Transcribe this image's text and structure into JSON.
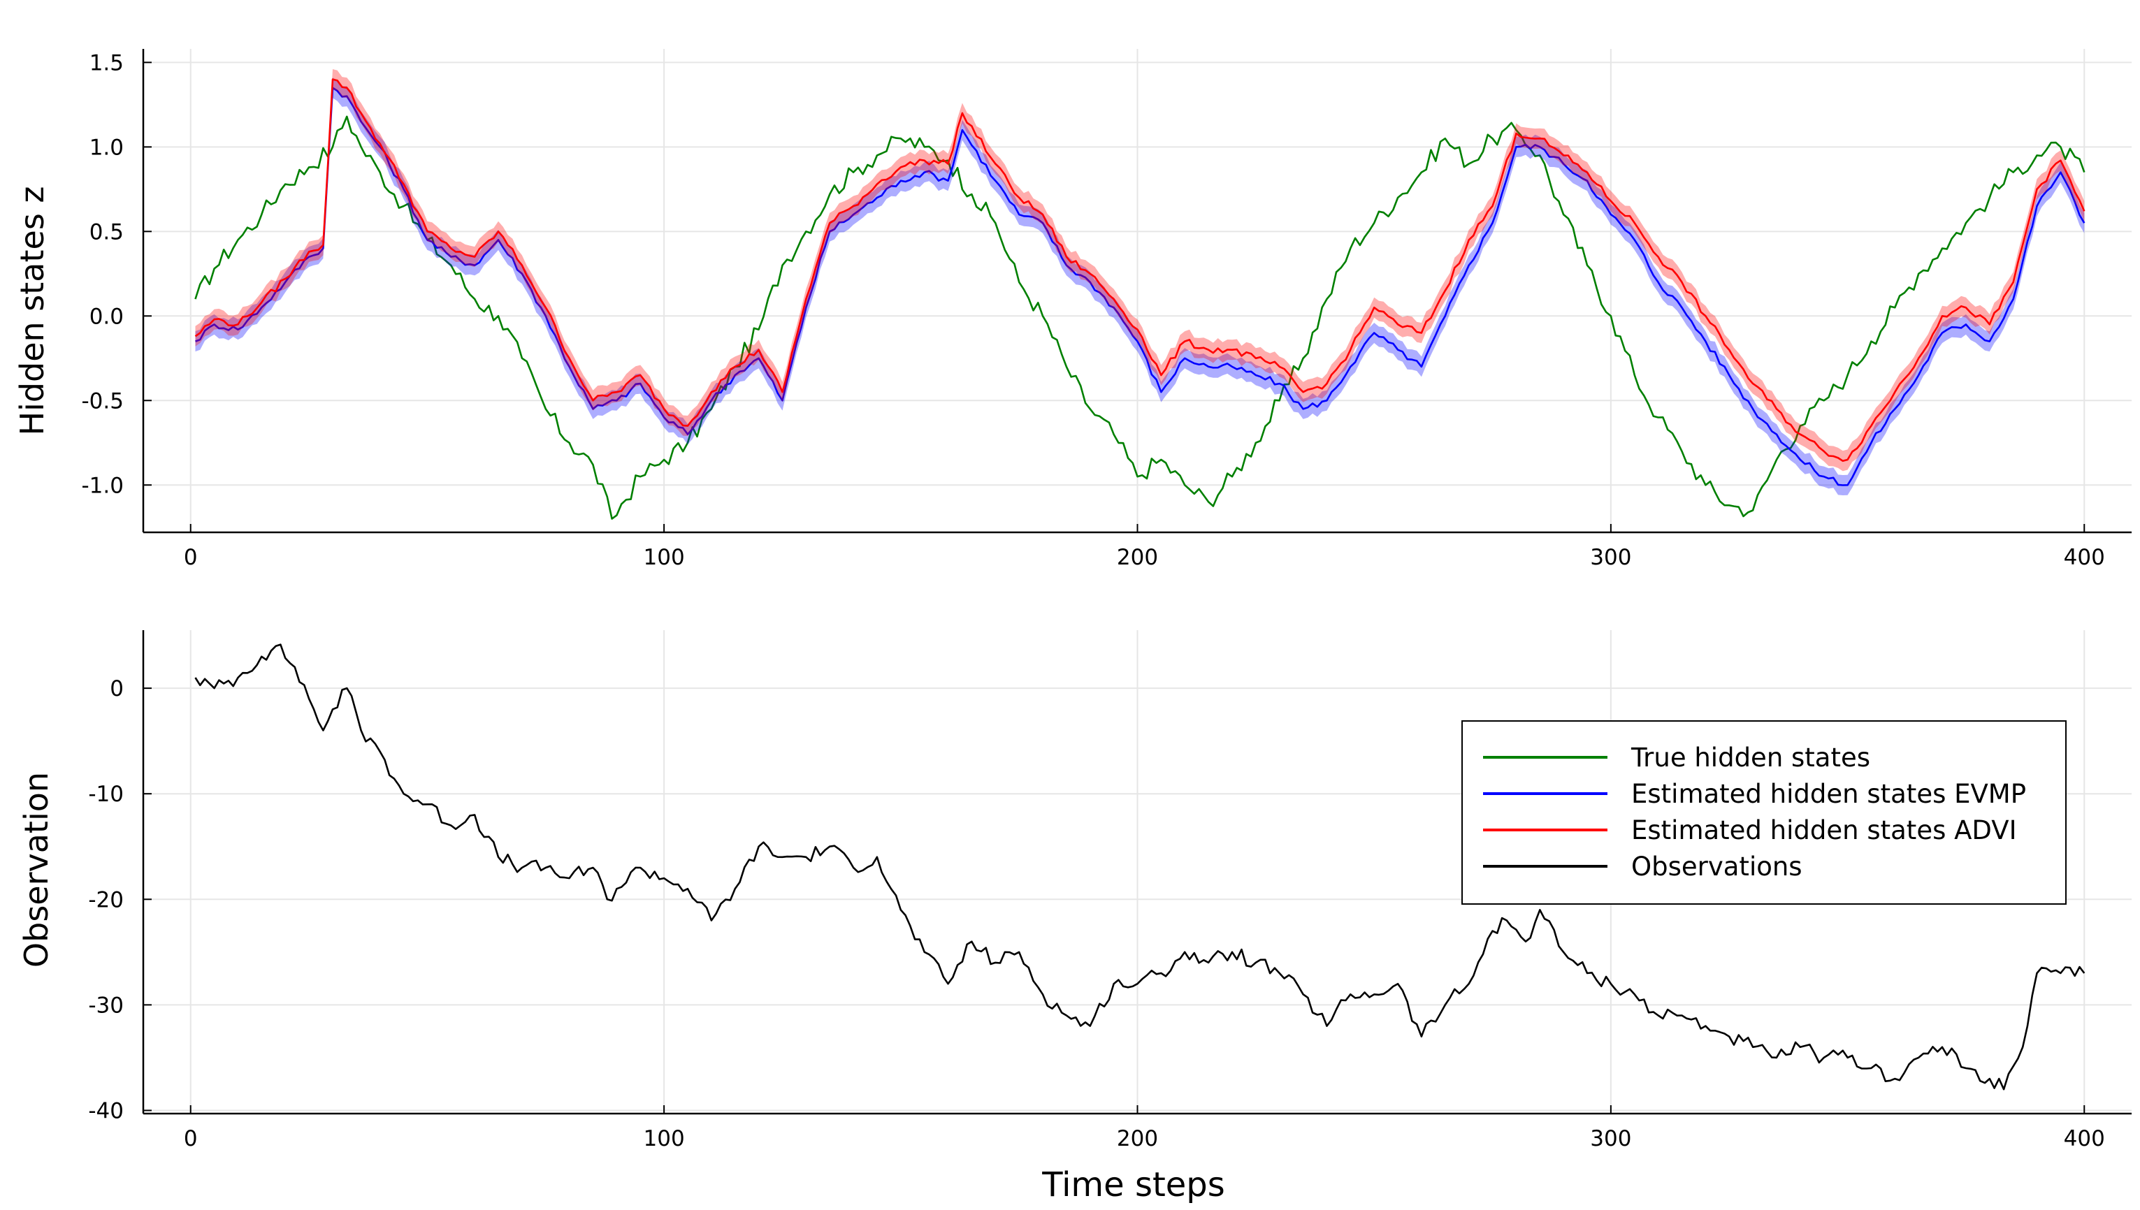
{
  "chart_data": [
    {
      "type": "line",
      "ylabel": "Hidden states z",
      "xlabel": "",
      "xlim": [
        -10,
        410
      ],
      "ylim": [
        -1.28,
        1.58
      ],
      "xticks": [
        0,
        100,
        200,
        300,
        400
      ],
      "xtick_labels": [
        "0",
        "100",
        "200",
        "300",
        "400"
      ],
      "yticks": [
        -1.0,
        -0.5,
        0.0,
        0.5,
        1.0,
        1.5
      ],
      "ytick_labels": [
        "-1.0",
        "-0.5",
        "0.0",
        "0.5",
        "1.0",
        "1.5"
      ],
      "grid": true,
      "series": [
        {
          "name": "True hidden states",
          "color": "#008000",
          "x": [
            1,
            5,
            10,
            15,
            20,
            25,
            30,
            33,
            36,
            40,
            45,
            50,
            55,
            60,
            65,
            70,
            75,
            80,
            85,
            89,
            95,
            100,
            105,
            110,
            115,
            120,
            125,
            130,
            135,
            140,
            145,
            150,
            155,
            160,
            165,
            170,
            175,
            180,
            185,
            190,
            195,
            200,
            205,
            210,
            215,
            220,
            225,
            230,
            235,
            240,
            245,
            250,
            255,
            260,
            265,
            270,
            275,
            280,
            285,
            290,
            295,
            300,
            305,
            310,
            315,
            320,
            325,
            330,
            335,
            340,
            345,
            350,
            355,
            360,
            365,
            370,
            375,
            380,
            385,
            390,
            395,
            400
          ],
          "values": [
            0.1,
            0.28,
            0.45,
            0.6,
            0.78,
            0.88,
            1.0,
            1.18,
            1.0,
            0.85,
            0.65,
            0.45,
            0.3,
            0.1,
            0.0,
            -0.25,
            -0.55,
            -0.75,
            -0.88,
            -1.2,
            -0.95,
            -0.85,
            -0.75,
            -0.55,
            -0.3,
            -0.08,
            0.3,
            0.5,
            0.72,
            0.85,
            0.95,
            1.05,
            1.0,
            0.92,
            0.72,
            0.55,
            0.2,
            0.0,
            -0.3,
            -0.55,
            -0.7,
            -0.95,
            -0.85,
            -1.0,
            -1.1,
            -0.95,
            -0.75,
            -0.5,
            -0.25,
            0.1,
            0.4,
            0.55,
            0.7,
            0.85,
            1.05,
            0.9,
            1.05,
            1.1,
            0.95,
            0.6,
            0.3,
            0.0,
            -0.35,
            -0.6,
            -0.8,
            -1.0,
            -1.12,
            -1.15,
            -0.85,
            -0.65,
            -0.5,
            -0.35,
            -0.15,
            0.05,
            0.25,
            0.4,
            0.55,
            0.7,
            0.85,
            0.95,
            1.0,
            0.85
          ]
        },
        {
          "name": "Estimated hidden states EVMP",
          "color": "#0000ff",
          "x": [
            1,
            5,
            10,
            15,
            20,
            25,
            28,
            30,
            33,
            36,
            40,
            45,
            50,
            55,
            60,
            65,
            70,
            75,
            80,
            85,
            90,
            95,
            100,
            105,
            110,
            115,
            120,
            125,
            130,
            135,
            140,
            145,
            150,
            155,
            160,
            163,
            170,
            175,
            180,
            185,
            190,
            195,
            200,
            205,
            210,
            215,
            220,
            225,
            230,
            235,
            240,
            245,
            250,
            255,
            260,
            265,
            270,
            275,
            280,
            285,
            290,
            295,
            300,
            305,
            310,
            315,
            320,
            325,
            330,
            335,
            340,
            345,
            350,
            355,
            360,
            365,
            370,
            375,
            380,
            385,
            390,
            395,
            400
          ],
          "values": [
            -0.15,
            -0.05,
            -0.08,
            0.05,
            0.2,
            0.35,
            0.4,
            1.35,
            1.3,
            1.15,
            1.0,
            0.75,
            0.45,
            0.35,
            0.3,
            0.45,
            0.25,
            0.0,
            -0.3,
            -0.55,
            -0.5,
            -0.4,
            -0.6,
            -0.7,
            -0.5,
            -0.35,
            -0.25,
            -0.5,
            0.05,
            0.5,
            0.6,
            0.7,
            0.8,
            0.85,
            0.8,
            1.1,
            0.8,
            0.6,
            0.55,
            0.3,
            0.2,
            0.05,
            -0.15,
            -0.45,
            -0.25,
            -0.3,
            -0.3,
            -0.35,
            -0.4,
            -0.55,
            -0.5,
            -0.3,
            -0.1,
            -0.2,
            -0.3,
            0.0,
            0.3,
            0.55,
            1.0,
            1.0,
            0.9,
            0.8,
            0.6,
            0.45,
            0.2,
            0.05,
            -0.15,
            -0.35,
            -0.55,
            -0.7,
            -0.85,
            -0.95,
            -1.0,
            -0.75,
            -0.55,
            -0.35,
            -0.1,
            -0.05,
            -0.15,
            0.1,
            0.65,
            0.85,
            0.55
          ]
        },
        {
          "name": "Estimated hidden states ADVI",
          "color": "#ff0000",
          "x": [
            1,
            5,
            10,
            15,
            20,
            25,
            28,
            30,
            33,
            36,
            40,
            45,
            50,
            55,
            60,
            65,
            70,
            75,
            80,
            85,
            90,
            95,
            100,
            105,
            110,
            115,
            120,
            125,
            130,
            135,
            140,
            145,
            150,
            155,
            160,
            163,
            170,
            175,
            180,
            185,
            190,
            195,
            200,
            205,
            210,
            215,
            220,
            225,
            230,
            235,
            240,
            245,
            250,
            255,
            260,
            265,
            270,
            275,
            280,
            285,
            290,
            295,
            300,
            305,
            310,
            315,
            320,
            325,
            330,
            335,
            340,
            345,
            350,
            355,
            360,
            365,
            370,
            375,
            380,
            385,
            390,
            395,
            400
          ],
          "values": [
            -0.12,
            -0.02,
            -0.05,
            0.08,
            0.22,
            0.38,
            0.42,
            1.4,
            1.35,
            1.2,
            1.02,
            0.78,
            0.5,
            0.4,
            0.35,
            0.5,
            0.3,
            0.05,
            -0.25,
            -0.5,
            -0.45,
            -0.35,
            -0.55,
            -0.65,
            -0.45,
            -0.3,
            -0.2,
            -0.45,
            0.1,
            0.55,
            0.65,
            0.78,
            0.88,
            0.92,
            0.9,
            1.2,
            0.9,
            0.7,
            0.6,
            0.35,
            0.25,
            0.1,
            -0.08,
            -0.35,
            -0.15,
            -0.2,
            -0.2,
            -0.25,
            -0.3,
            -0.45,
            -0.4,
            -0.2,
            0.05,
            -0.05,
            -0.1,
            0.15,
            0.45,
            0.65,
            1.08,
            1.05,
            0.95,
            0.85,
            0.68,
            0.55,
            0.35,
            0.2,
            0.0,
            -0.2,
            -0.4,
            -0.55,
            -0.7,
            -0.8,
            -0.85,
            -0.65,
            -0.45,
            -0.25,
            0.0,
            0.05,
            -0.05,
            0.2,
            0.75,
            0.92,
            0.62
          ]
        }
      ]
    },
    {
      "type": "line",
      "ylabel": "Observation",
      "xlabel": "Time steps",
      "xlim": [
        -10,
        410
      ],
      "ylim": [
        -40.3,
        5.5
      ],
      "xticks": [
        0,
        100,
        200,
        300,
        400
      ],
      "xtick_labels": [
        "0",
        "100",
        "200",
        "300",
        "400"
      ],
      "yticks": [
        0,
        -10,
        -20,
        -30,
        -40
      ],
      "ytick_labels": [
        "0",
        "-10",
        "-20",
        "-30",
        "-40"
      ],
      "grid": true,
      "legend": {
        "position": "right",
        "entries": [
          {
            "label": "True hidden states",
            "color": "#008000"
          },
          {
            "label": "Estimated hidden states EVMP",
            "color": "#0000ff"
          },
          {
            "label": "Estimated hidden states ADVI",
            "color": "#ff0000"
          },
          {
            "label": "Observations",
            "color": "#000000"
          }
        ]
      },
      "series": [
        {
          "name": "Observations",
          "color": "#000000",
          "x": [
            1,
            5,
            10,
            15,
            18,
            22,
            25,
            28,
            30,
            33,
            36,
            40,
            45,
            50,
            55,
            60,
            65,
            70,
            75,
            80,
            85,
            88,
            90,
            95,
            100,
            105,
            110,
            115,
            120,
            125,
            130,
            135,
            140,
            145,
            150,
            155,
            160,
            165,
            170,
            175,
            180,
            185,
            190,
            195,
            200,
            205,
            210,
            215,
            220,
            225,
            230,
            235,
            240,
            245,
            250,
            255,
            260,
            265,
            270,
            275,
            278,
            282,
            285,
            290,
            295,
            300,
            305,
            310,
            315,
            320,
            325,
            330,
            335,
            340,
            345,
            350,
            355,
            360,
            365,
            370,
            375,
            380,
            383,
            387,
            390,
            395,
            400
          ],
          "values": [
            1,
            0,
            1,
            3,
            4,
            2,
            -1,
            -4,
            -2,
            0,
            -4,
            -6,
            -10,
            -11,
            -13,
            -12,
            -16,
            -17,
            -17,
            -18,
            -17,
            -20,
            -19,
            -17,
            -18,
            -19,
            -22,
            -19,
            -15,
            -16,
            -16,
            -15,
            -17,
            -16,
            -21,
            -25,
            -28,
            -24,
            -26,
            -25,
            -29,
            -31,
            -32,
            -28,
            -28,
            -27,
            -25,
            -26,
            -25,
            -26,
            -27,
            -29,
            -32,
            -29,
            -29,
            -28,
            -33,
            -30,
            -28,
            -23,
            -22,
            -24,
            -21,
            -25,
            -27,
            -28,
            -29,
            -31,
            -31,
            -32,
            -33,
            -34,
            -35,
            -34,
            -35,
            -35,
            -36,
            -37,
            -35,
            -34,
            -36,
            -37,
            -38,
            -34,
            -27,
            -27,
            -27
          ]
        }
      ]
    }
  ]
}
